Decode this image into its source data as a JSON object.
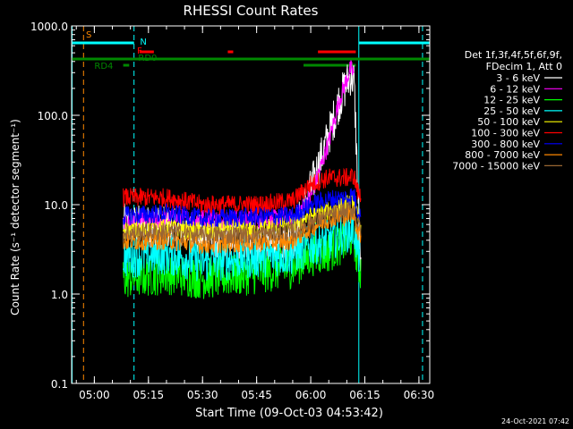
{
  "chart_data": {
    "type": "line",
    "title": "RHESSI Count Rates",
    "xlabel": "Start Time (09-Oct-03 04:53:42)",
    "ylabel": "Count Rate (s⁻¹ detector segment⁻¹)",
    "yscale": "log",
    "ylim": [
      0.1,
      1000
    ],
    "xlim": [
      "04:53:42",
      "06:33:00"
    ],
    "y_ticks": [
      "0.1",
      "1.0",
      "10.0",
      "100.0",
      "1000.0"
    ],
    "x_ticks": [
      "05:00",
      "05:15",
      "05:30",
      "05:45",
      "06:00",
      "06:15",
      "06:30"
    ],
    "legend_header": [
      "Det 1f,3f,4f,5f,6f,9f,",
      "FDecim 1, Att 0"
    ],
    "legend_position": "right",
    "series": [
      {
        "name": "3 - 6 keV",
        "color": "#ffffff",
        "points": [
          [
            "05:08",
            6
          ],
          [
            "05:20",
            5.5
          ],
          [
            "05:30",
            4.5
          ],
          [
            "05:45",
            3.8
          ],
          [
            "05:55",
            4
          ],
          [
            "06:00",
            15
          ],
          [
            "06:05",
            60
          ],
          [
            "06:08",
            150
          ],
          [
            "06:11",
            280
          ],
          [
            "06:12",
            250
          ],
          [
            "06:14",
            1.2
          ]
        ]
      },
      {
        "name": "6 - 12 keV",
        "color": "#ff00ff",
        "points": [
          [
            "05:08",
            6
          ],
          [
            "05:20",
            7
          ],
          [
            "05:30",
            7
          ],
          [
            "05:45",
            6.8
          ],
          [
            "05:55",
            7
          ],
          [
            "06:00",
            12
          ],
          [
            "06:05",
            50
          ],
          [
            "06:08",
            150
          ],
          [
            "06:11",
            330
          ],
          [
            "06:12",
            300
          ]
        ]
      },
      {
        "name": "12 - 25 keV",
        "color": "#00ff00",
        "points": [
          [
            "05:08",
            1.5
          ],
          [
            "05:20",
            1.7
          ],
          [
            "05:30",
            1.5
          ],
          [
            "05:45",
            1.7
          ],
          [
            "05:55",
            2
          ],
          [
            "06:00",
            2.7
          ],
          [
            "06:05",
            3
          ],
          [
            "06:10",
            4
          ],
          [
            "06:12",
            4.5
          ],
          [
            "06:13",
            2.2
          ],
          [
            "06:14",
            1.8
          ]
        ]
      },
      {
        "name": "25 - 50 keV",
        "color": "#00ffff",
        "points": [
          [
            "05:08",
            2.6
          ],
          [
            "05:20",
            2.8
          ],
          [
            "05:30",
            2.3
          ],
          [
            "05:45",
            2.6
          ],
          [
            "05:55",
            2.8
          ],
          [
            "06:00",
            3.5
          ],
          [
            "06:05",
            4
          ],
          [
            "06:10",
            5
          ],
          [
            "06:12",
            5.5
          ],
          [
            "06:13",
            3
          ],
          [
            "06:14",
            2.5
          ]
        ]
      },
      {
        "name": "50 - 100 keV",
        "color": "#ffff00",
        "points": [
          [
            "05:08",
            5
          ],
          [
            "05:20",
            5.5
          ],
          [
            "05:30",
            5
          ],
          [
            "05:45",
            5.4
          ],
          [
            "05:55",
            6
          ],
          [
            "06:00",
            7.5
          ],
          [
            "06:05",
            8.5
          ],
          [
            "06:10",
            10
          ],
          [
            "06:12",
            11
          ],
          [
            "06:13",
            7
          ],
          [
            "06:14",
            6
          ]
        ]
      },
      {
        "name": "100 - 300 keV",
        "color": "#ff0000",
        "points": [
          [
            "05:08",
            12
          ],
          [
            "05:20",
            12
          ],
          [
            "05:30",
            10
          ],
          [
            "05:45",
            10
          ],
          [
            "05:55",
            11
          ],
          [
            "06:00",
            17
          ],
          [
            "06:05",
            20
          ],
          [
            "06:10",
            20
          ],
          [
            "06:12",
            21
          ],
          [
            "06:13",
            14
          ],
          [
            "06:14",
            12
          ]
        ]
      },
      {
        "name": "300 - 800 keV",
        "color": "#0000ff",
        "points": [
          [
            "05:08",
            7.5
          ],
          [
            "05:20",
            8
          ],
          [
            "05:30",
            7
          ],
          [
            "05:45",
            7.3
          ],
          [
            "05:55",
            7.5
          ],
          [
            "06:00",
            10
          ],
          [
            "06:05",
            11.5
          ],
          [
            "06:10",
            12
          ],
          [
            "06:12",
            13
          ],
          [
            "06:13",
            8.5
          ],
          [
            "06:14",
            7.5
          ]
        ]
      },
      {
        "name": "800 - 7000 keV",
        "color": "#ff8800",
        "points": [
          [
            "05:08",
            3.9
          ],
          [
            "05:20",
            4
          ],
          [
            "05:30",
            3.6
          ],
          [
            "05:45",
            3.8
          ],
          [
            "05:55",
            4
          ],
          [
            "06:00",
            5.5
          ],
          [
            "06:05",
            7
          ],
          [
            "06:10",
            7.5
          ],
          [
            "06:12",
            8
          ],
          [
            "06:13",
            5
          ],
          [
            "06:14",
            4.5
          ]
        ]
      },
      {
        "name": "7000 - 15000 keV",
        "color": "#996633",
        "points": [
          [
            "05:08",
            4.8
          ],
          [
            "05:20",
            5
          ],
          [
            "05:30",
            4.5
          ],
          [
            "05:45",
            4.7
          ],
          [
            "05:55",
            5
          ],
          [
            "06:00",
            6.5
          ],
          [
            "06:05",
            7.5
          ],
          [
            "06:10",
            8.5
          ],
          [
            "06:12",
            9
          ],
          [
            "06:13",
            6
          ],
          [
            "06:14",
            5.5
          ]
        ]
      }
    ],
    "flags": [
      {
        "label": "S",
        "color": "#ff8800"
      },
      {
        "label": "N",
        "color": "#00ffff"
      },
      {
        "label": "F",
        "color": "#ff0000"
      },
      {
        "label": "RD0",
        "color": "#008800"
      },
      {
        "label": "RD4",
        "color": "#008800"
      }
    ],
    "footer_date": "24-Oct-2021 07:42"
  }
}
